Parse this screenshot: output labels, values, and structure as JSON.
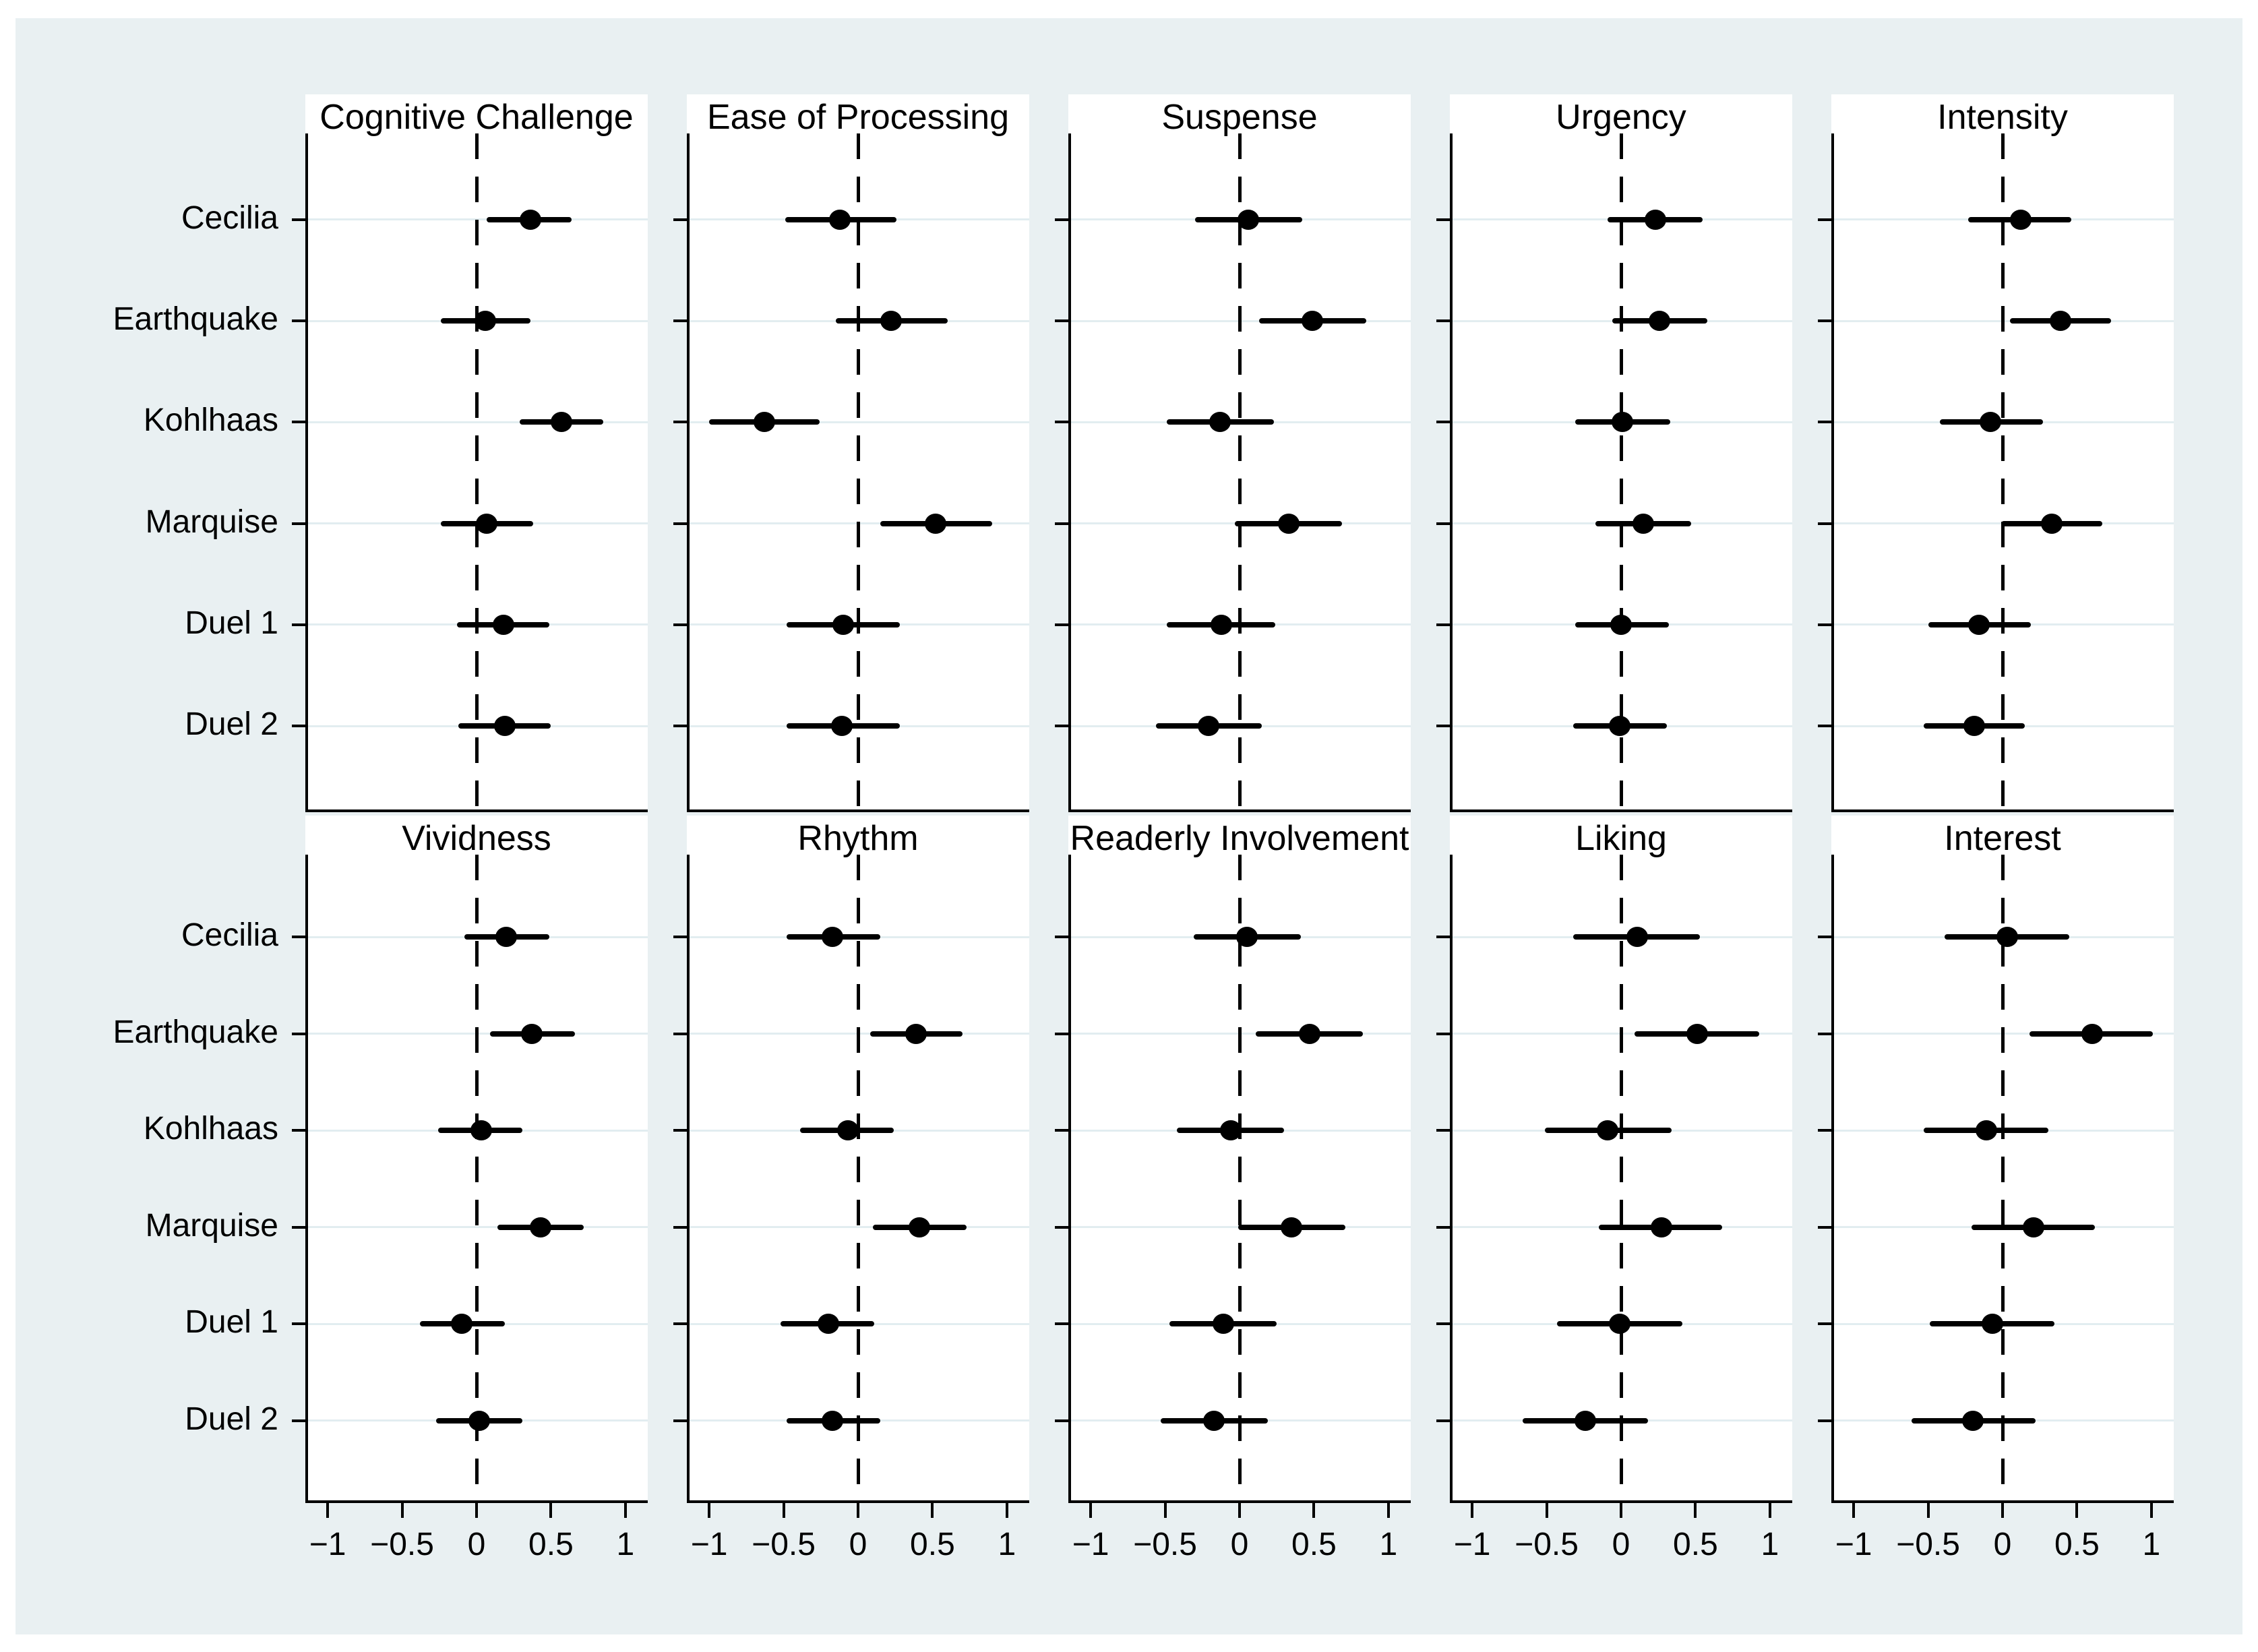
{
  "figure": {
    "page_bg": "#ffffff",
    "canvas_bg": "#e9f0f2",
    "panel_bg": "#ffffff",
    "grid_color": "#e2edf0",
    "axis_color": "#000000",
    "marker_color": "#000000"
  },
  "chart_data": {
    "type": "scatter",
    "subtype": "coefficient-dot-plot-with-ci",
    "layout": {
      "rows": 2,
      "cols": 5,
      "legend": "none",
      "grid": "horizontal-light",
      "zero_reference_line": "dashed-vertical-at-0"
    },
    "categories": [
      "Cecilia",
      "Earthquake",
      "Kohlhaas",
      "Marquise",
      "Duel 1",
      "Duel 2"
    ],
    "xlim": [
      -1.15,
      1.15
    ],
    "x_ticks": [
      -1,
      -0.5,
      0,
      0.5,
      1
    ],
    "x_tick_labels": [
      "−1",
      "−0.5",
      "0",
      "0.5",
      "1"
    ],
    "panels": [
      {
        "title": "Cognitive Challenge",
        "estimates": [
          0.36,
          0.06,
          0.57,
          0.07,
          0.18,
          0.19
        ],
        "ci_low": [
          0.07,
          -0.24,
          0.29,
          -0.24,
          -0.13,
          -0.12
        ],
        "ci_high": [
          0.64,
          0.36,
          0.85,
          0.38,
          0.49,
          0.5
        ]
      },
      {
        "title": "Ease of Processing",
        "estimates": [
          -0.12,
          0.22,
          -0.63,
          0.52,
          -0.1,
          -0.11
        ],
        "ci_low": [
          -0.49,
          -0.15,
          -1.0,
          0.15,
          -0.48,
          -0.48
        ],
        "ci_high": [
          0.26,
          0.6,
          -0.26,
          0.9,
          0.28,
          0.28
        ]
      },
      {
        "title": "Suspense",
        "estimates": [
          0.06,
          0.49,
          -0.13,
          0.33,
          -0.12,
          -0.21
        ],
        "ci_low": [
          -0.3,
          0.13,
          -0.49,
          -0.03,
          -0.49,
          -0.56
        ],
        "ci_high": [
          0.42,
          0.85,
          0.23,
          0.69,
          0.24,
          0.15
        ]
      },
      {
        "title": "Urgency",
        "estimates": [
          0.23,
          0.26,
          0.01,
          0.15,
          0.0,
          -0.01
        ],
        "ci_low": [
          -0.09,
          -0.06,
          -0.31,
          -0.17,
          -0.31,
          -0.32
        ],
        "ci_high": [
          0.55,
          0.58,
          0.33,
          0.47,
          0.32,
          0.31
        ]
      },
      {
        "title": "Intensity",
        "estimates": [
          0.12,
          0.39,
          -0.08,
          0.33,
          -0.16,
          -0.19
        ],
        "ci_low": [
          -0.23,
          0.05,
          -0.42,
          -0.01,
          -0.5,
          -0.53
        ],
        "ci_high": [
          0.46,
          0.73,
          0.27,
          0.67,
          0.19,
          0.15
        ]
      },
      {
        "title": "Vividness",
        "estimates": [
          0.2,
          0.37,
          0.03,
          0.43,
          -0.1,
          0.02
        ],
        "ci_low": [
          -0.08,
          0.09,
          -0.26,
          0.14,
          -0.38,
          -0.27
        ],
        "ci_high": [
          0.49,
          0.66,
          0.31,
          0.72,
          0.19,
          0.31
        ]
      },
      {
        "title": "Rhythm",
        "estimates": [
          -0.17,
          0.39,
          -0.07,
          0.41,
          -0.2,
          -0.17
        ],
        "ci_low": [
          -0.48,
          0.08,
          -0.39,
          0.1,
          -0.52,
          -0.48
        ],
        "ci_high": [
          0.15,
          0.7,
          0.24,
          0.73,
          0.11,
          0.15
        ]
      },
      {
        "title": "Readerly Involvement",
        "estimates": [
          0.05,
          0.47,
          -0.06,
          0.35,
          -0.11,
          -0.17
        ],
        "ci_low": [
          -0.31,
          0.11,
          -0.42,
          -0.01,
          -0.47,
          -0.53
        ],
        "ci_high": [
          0.41,
          0.83,
          0.3,
          0.71,
          0.25,
          0.19
        ]
      },
      {
        "title": "Liking",
        "estimates": [
          0.11,
          0.51,
          -0.09,
          0.27,
          -0.01,
          -0.24
        ],
        "ci_low": [
          -0.32,
          0.09,
          -0.51,
          -0.15,
          -0.43,
          -0.66
        ],
        "ci_high": [
          0.53,
          0.93,
          0.34,
          0.68,
          0.41,
          0.18
        ]
      },
      {
        "title": "Interest",
        "estimates": [
          0.03,
          0.6,
          -0.11,
          0.21,
          -0.07,
          -0.2
        ],
        "ci_low": [
          -0.39,
          0.18,
          -0.53,
          -0.21,
          -0.49,
          -0.61
        ],
        "ci_high": [
          0.45,
          1.01,
          0.31,
          0.62,
          0.35,
          0.22
        ]
      }
    ]
  }
}
